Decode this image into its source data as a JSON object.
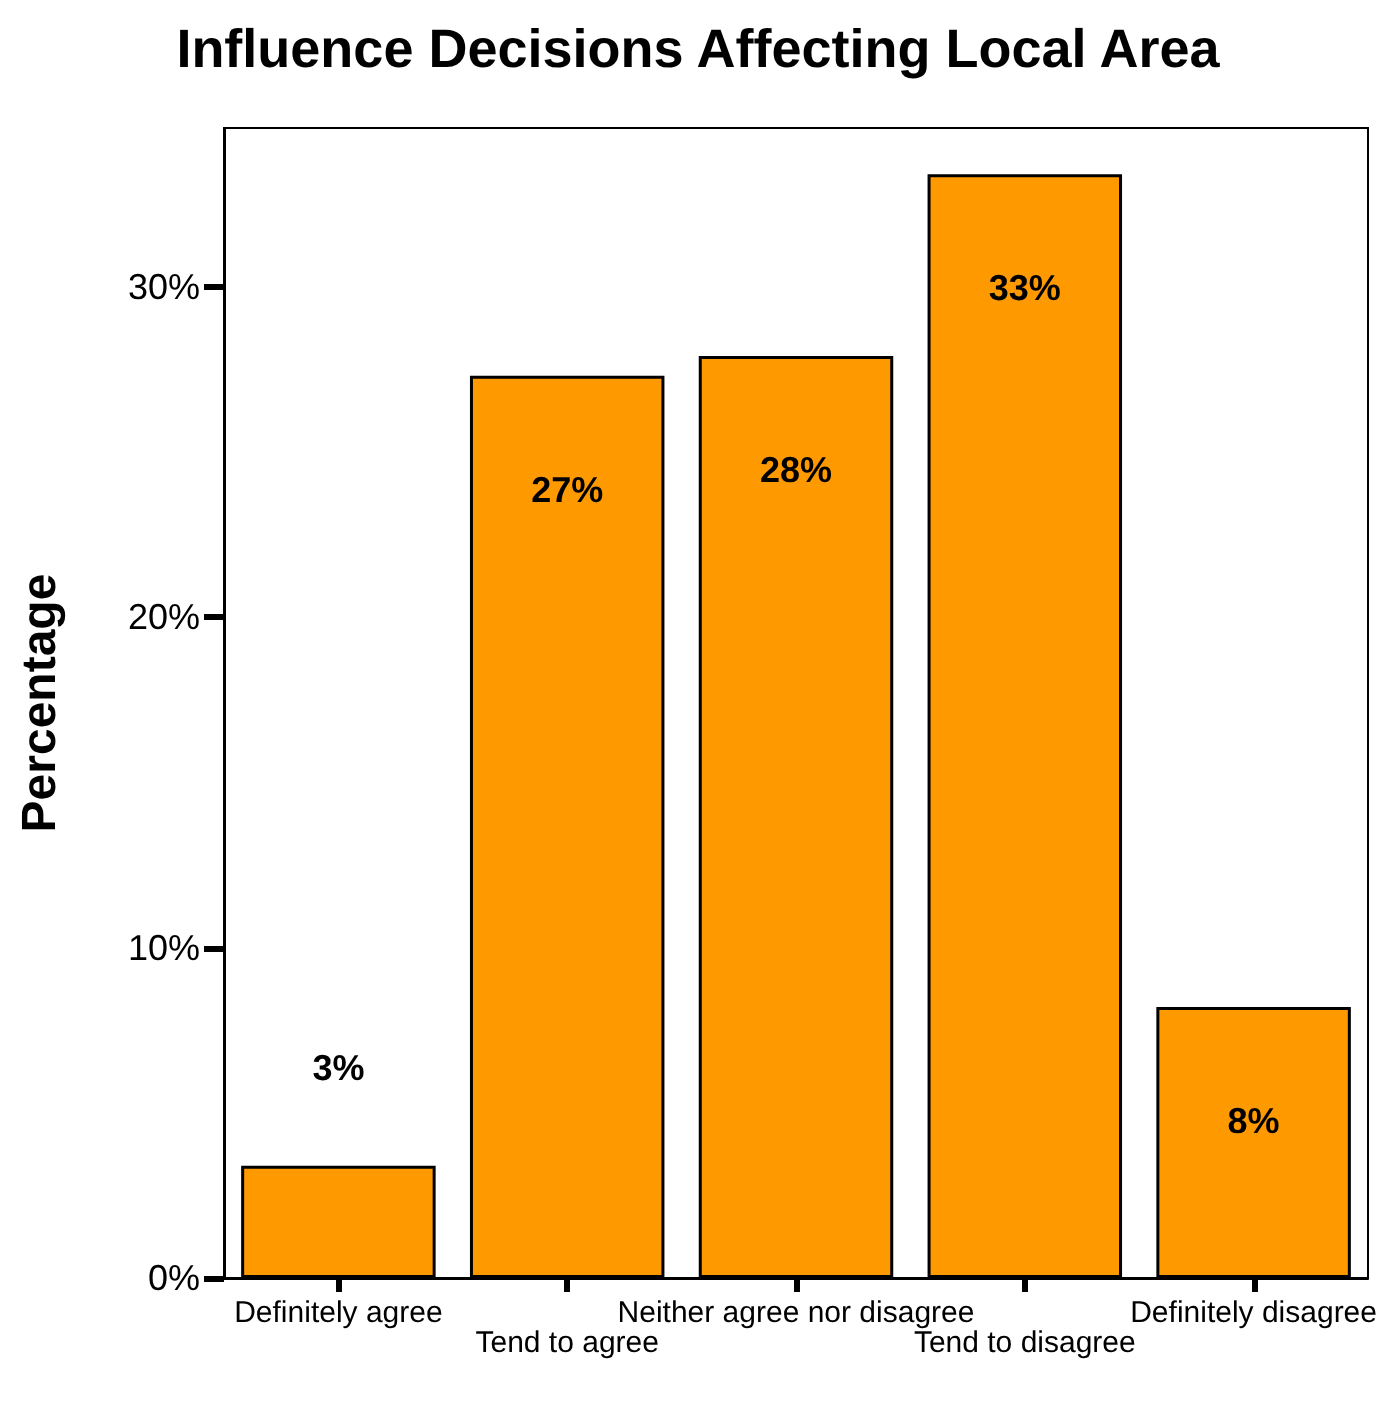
{
  "chart_data": {
    "type": "bar",
    "title": "Influence Decisions Affecting Local Area",
    "ylabel": "Percentage",
    "categories": [
      "Definitely agree",
      "Tend to agree",
      "Neither agree nor disagree",
      "Tend to disagree",
      "Definitely disagree"
    ],
    "values": [
      3.4,
      27.3,
      27.9,
      33.4,
      8.2
    ],
    "value_labels": [
      "3%",
      "27%",
      "28%",
      "33%",
      "8%"
    ],
    "color": "#ff9900",
    "ylim": [
      0,
      34.8
    ],
    "yticks": [
      {
        "value": 0,
        "label": "0%"
      },
      {
        "value": 10,
        "label": "10%"
      },
      {
        "value": 20,
        "label": "20%"
      },
      {
        "value": 30,
        "label": "30%"
      }
    ],
    "grid": false
  }
}
